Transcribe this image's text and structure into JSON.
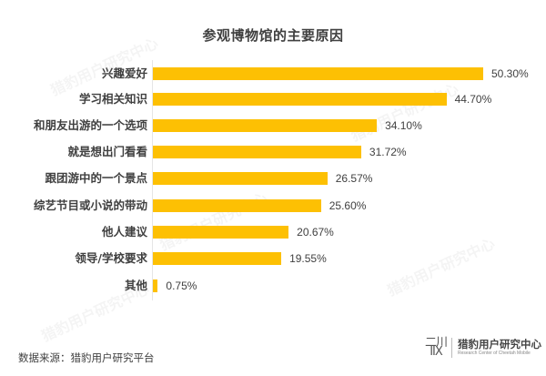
{
  "title": "参观博物馆的主要原因",
  "source": "数据来源：猎豹用户研究平台",
  "logo": {
    "mark": "CM",
    "name": "猎豹用户研究中心",
    "subtitle": "Research Center of Cheetah Mobile"
  },
  "watermark_text": "猎豹用户研究中心",
  "colors": {
    "bar": "#FDC003",
    "text": "#404040"
  },
  "chart_data": {
    "type": "bar",
    "orientation": "horizontal",
    "title": "参观博物馆的主要原因",
    "xlabel": "",
    "ylabel": "",
    "grid": false,
    "legend": "none",
    "categories": [
      "兴趣爱好",
      "学习相关知识",
      "和朋友出游的一个选项",
      "就是想出门看看",
      "跟团游中的一个景点",
      "综艺节目或小说的带动",
      "他人建议",
      "领导/学校要求",
      "其他"
    ],
    "values": [
      50.3,
      44.7,
      34.1,
      31.72,
      26.57,
      25.6,
      20.67,
      19.55,
      0.75
    ],
    "value_labels": [
      "50.30%",
      "44.70%",
      "34.10%",
      "31.72%",
      "26.57%",
      "25.60%",
      "20.67%",
      "19.55%",
      "0.75%"
    ],
    "unit": "%"
  }
}
